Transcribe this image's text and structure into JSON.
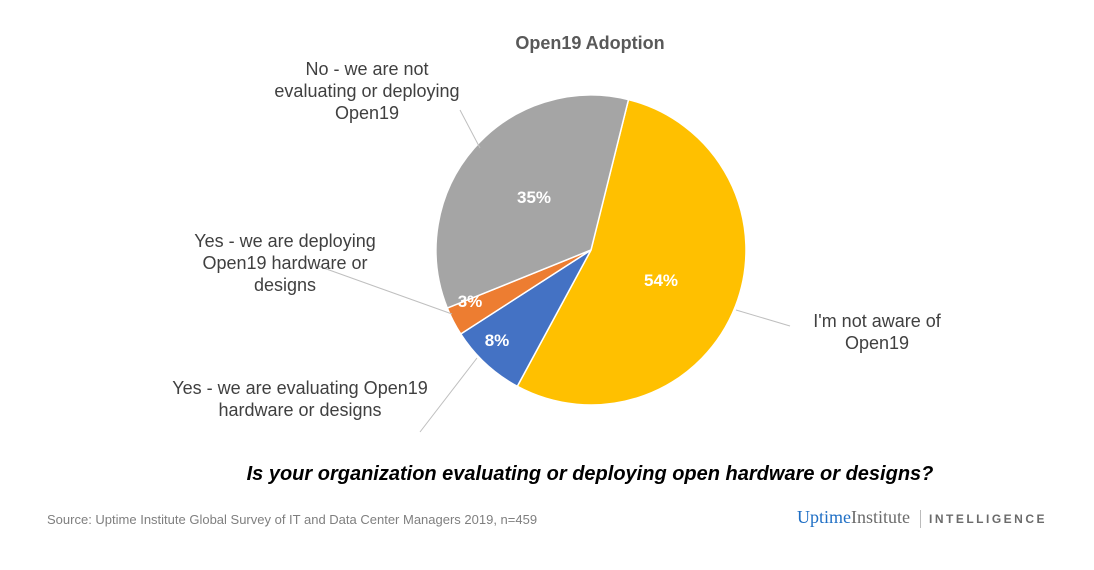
{
  "chart_data": {
    "type": "pie",
    "title": "Open19 Adoption",
    "slices": [
      {
        "label": "I'm not aware of Open19",
        "value": 54,
        "data_label": "54%",
        "color": "#FFC000"
      },
      {
        "label": "Yes - we are evaluating Open19 hardware or designs",
        "value": 8,
        "data_label": "8%",
        "color": "#4472C4"
      },
      {
        "label": "Yes - we are deploying Open19 hardware or designs",
        "value": 3,
        "data_label": "3%",
        "color": "#ED7D31"
      },
      {
        "label": "No - we are not evaluating or deploying Open19",
        "value": 35,
        "data_label": "35%",
        "color": "#A5A5A5"
      }
    ]
  },
  "question": "Is your organization evaluating or deploying open hardware or designs?",
  "source": "Source: Uptime Institute Global Survey of IT and Data Center Managers 2019, n=459",
  "logo": {
    "uptime": "Uptime",
    "institute": "Institute",
    "intelligence": "INTELLIGENCE"
  }
}
